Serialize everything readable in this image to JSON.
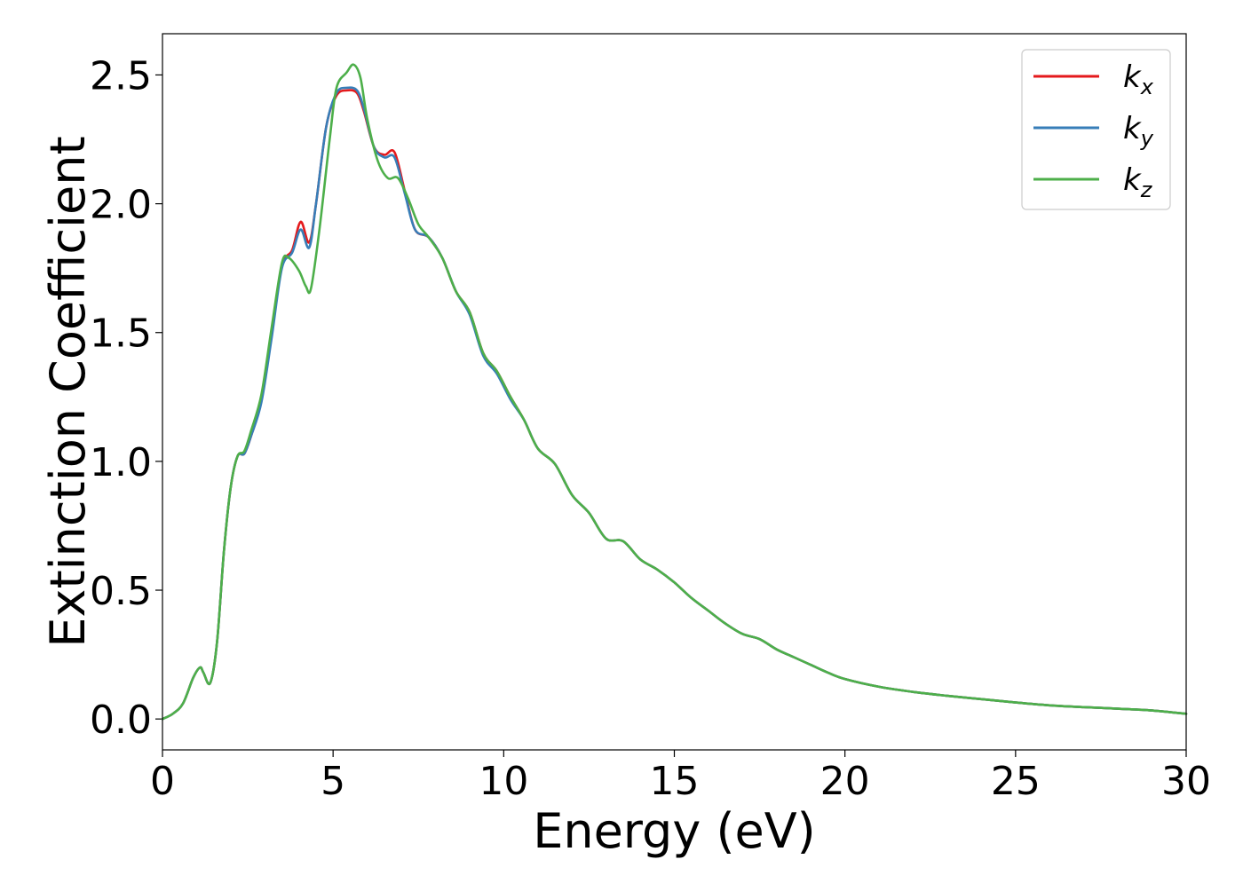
{
  "chart_data": {
    "type": "line",
    "title": "",
    "xlabel": "Energy (eV)",
    "ylabel": "Extinction Coefficient",
    "xlim": [
      0,
      30
    ],
    "ylim": [
      -0.12,
      2.66
    ],
    "xticks": [
      0,
      5,
      10,
      15,
      20,
      25,
      30
    ],
    "xtick_labels": [
      "0",
      "5",
      "10",
      "15",
      "20",
      "25",
      "30"
    ],
    "yticks": [
      0.0,
      0.5,
      1.0,
      1.5,
      2.0,
      2.5
    ],
    "ytick_labels": [
      "0.0",
      "0.5",
      "1.0",
      "1.5",
      "2.0",
      "2.5"
    ],
    "grid": false,
    "legend_position": "top-right",
    "series": [
      {
        "name": "k",
        "subscript": "x",
        "color": "#e41a1c",
        "x": [
          0,
          0.3,
          0.6,
          0.9,
          1.1,
          1.2,
          1.4,
          1.6,
          1.8,
          2.0,
          2.2,
          2.4,
          2.6,
          2.9,
          3.2,
          3.5,
          3.8,
          4.05,
          4.3,
          4.5,
          4.8,
          5.1,
          5.4,
          5.7,
          5.9,
          6.2,
          6.5,
          6.8,
          7.1,
          7.4,
          7.8,
          8.2,
          8.6,
          9.0,
          9.4,
          9.8,
          10.2,
          10.6,
          11.0,
          11.5,
          12.0,
          12.5,
          13.0,
          13.5,
          14.0,
          14.5,
          15.0,
          15.5,
          16.0,
          16.5,
          17.0,
          17.5,
          18.0,
          18.5,
          19.0,
          19.5,
          20.0,
          21.0,
          22.0,
          23.0,
          24.0,
          25.0,
          26.0,
          27.0,
          28.0,
          29.0,
          30.0
        ],
        "y": [
          0.0,
          0.02,
          0.06,
          0.16,
          0.2,
          0.18,
          0.14,
          0.3,
          0.65,
          0.9,
          1.02,
          1.03,
          1.1,
          1.24,
          1.5,
          1.76,
          1.82,
          1.93,
          1.85,
          2.0,
          2.3,
          2.42,
          2.44,
          2.43,
          2.36,
          2.22,
          2.19,
          2.2,
          2.05,
          1.9,
          1.87,
          1.79,
          1.66,
          1.58,
          1.42,
          1.35,
          1.25,
          1.16,
          1.05,
          0.99,
          0.87,
          0.8,
          0.7,
          0.69,
          0.62,
          0.58,
          0.53,
          0.47,
          0.42,
          0.37,
          0.33,
          0.31,
          0.27,
          0.24,
          0.21,
          0.18,
          0.155,
          0.125,
          0.105,
          0.09,
          0.077,
          0.064,
          0.053,
          0.046,
          0.04,
          0.033,
          0.02
        ]
      },
      {
        "name": "k",
        "subscript": "y",
        "color": "#377eb8",
        "x": [
          0,
          0.3,
          0.6,
          0.9,
          1.1,
          1.2,
          1.4,
          1.6,
          1.8,
          2.0,
          2.2,
          2.4,
          2.6,
          2.9,
          3.2,
          3.5,
          3.8,
          4.05,
          4.3,
          4.5,
          4.8,
          5.1,
          5.4,
          5.7,
          5.9,
          6.2,
          6.5,
          6.8,
          7.1,
          7.4,
          7.8,
          8.2,
          8.6,
          9.0,
          9.4,
          9.8,
          10.2,
          10.6,
          11.0,
          11.5,
          12.0,
          12.5,
          13.0,
          13.5,
          14.0,
          14.5,
          15.0,
          15.5,
          16.0,
          16.5,
          17.0,
          17.5,
          18.0,
          18.5,
          19.0,
          19.5,
          20.0,
          21.0,
          22.0,
          23.0,
          24.0,
          25.0,
          26.0,
          27.0,
          28.0,
          29.0,
          30.0
        ],
        "y": [
          0.0,
          0.02,
          0.06,
          0.16,
          0.2,
          0.18,
          0.14,
          0.3,
          0.65,
          0.9,
          1.02,
          1.03,
          1.1,
          1.23,
          1.48,
          1.75,
          1.81,
          1.9,
          1.83,
          2.0,
          2.3,
          2.43,
          2.45,
          2.44,
          2.37,
          2.22,
          2.18,
          2.18,
          2.04,
          1.9,
          1.87,
          1.79,
          1.66,
          1.57,
          1.41,
          1.34,
          1.24,
          1.16,
          1.05,
          0.99,
          0.87,
          0.8,
          0.7,
          0.69,
          0.62,
          0.58,
          0.53,
          0.47,
          0.42,
          0.37,
          0.33,
          0.31,
          0.27,
          0.24,
          0.21,
          0.18,
          0.155,
          0.125,
          0.105,
          0.09,
          0.077,
          0.064,
          0.053,
          0.046,
          0.04,
          0.033,
          0.02
        ]
      },
      {
        "name": "k",
        "subscript": "z",
        "color": "#4daf4a",
        "x": [
          0,
          0.3,
          0.6,
          0.9,
          1.1,
          1.2,
          1.4,
          1.6,
          1.8,
          2.0,
          2.2,
          2.4,
          2.6,
          2.9,
          3.2,
          3.5,
          3.7,
          4.0,
          4.2,
          4.35,
          4.6,
          4.9,
          5.1,
          5.4,
          5.6,
          5.8,
          6.0,
          6.3,
          6.6,
          6.9,
          7.2,
          7.5,
          7.8,
          8.2,
          8.6,
          9.0,
          9.4,
          9.8,
          10.2,
          10.6,
          11.0,
          11.5,
          12.0,
          12.5,
          13.0,
          13.5,
          14.0,
          14.5,
          15.0,
          15.5,
          16.0,
          16.5,
          17.0,
          17.5,
          18.0,
          18.5,
          19.0,
          19.5,
          20.0,
          21.0,
          22.0,
          23.0,
          24.0,
          25.0,
          26.0,
          27.0,
          28.0,
          29.0,
          30.0
        ],
        "y": [
          0.0,
          0.02,
          0.06,
          0.16,
          0.2,
          0.18,
          0.14,
          0.3,
          0.65,
          0.9,
          1.02,
          1.04,
          1.12,
          1.26,
          1.52,
          1.77,
          1.79,
          1.74,
          1.68,
          1.67,
          1.9,
          2.25,
          2.45,
          2.51,
          2.54,
          2.49,
          2.33,
          2.17,
          2.1,
          2.1,
          2.02,
          1.92,
          1.87,
          1.79,
          1.66,
          1.58,
          1.42,
          1.35,
          1.25,
          1.16,
          1.05,
          0.99,
          0.87,
          0.8,
          0.7,
          0.69,
          0.62,
          0.58,
          0.53,
          0.47,
          0.42,
          0.37,
          0.33,
          0.31,
          0.27,
          0.24,
          0.21,
          0.18,
          0.155,
          0.125,
          0.105,
          0.09,
          0.077,
          0.064,
          0.053,
          0.046,
          0.04,
          0.033,
          0.02
        ]
      }
    ]
  }
}
